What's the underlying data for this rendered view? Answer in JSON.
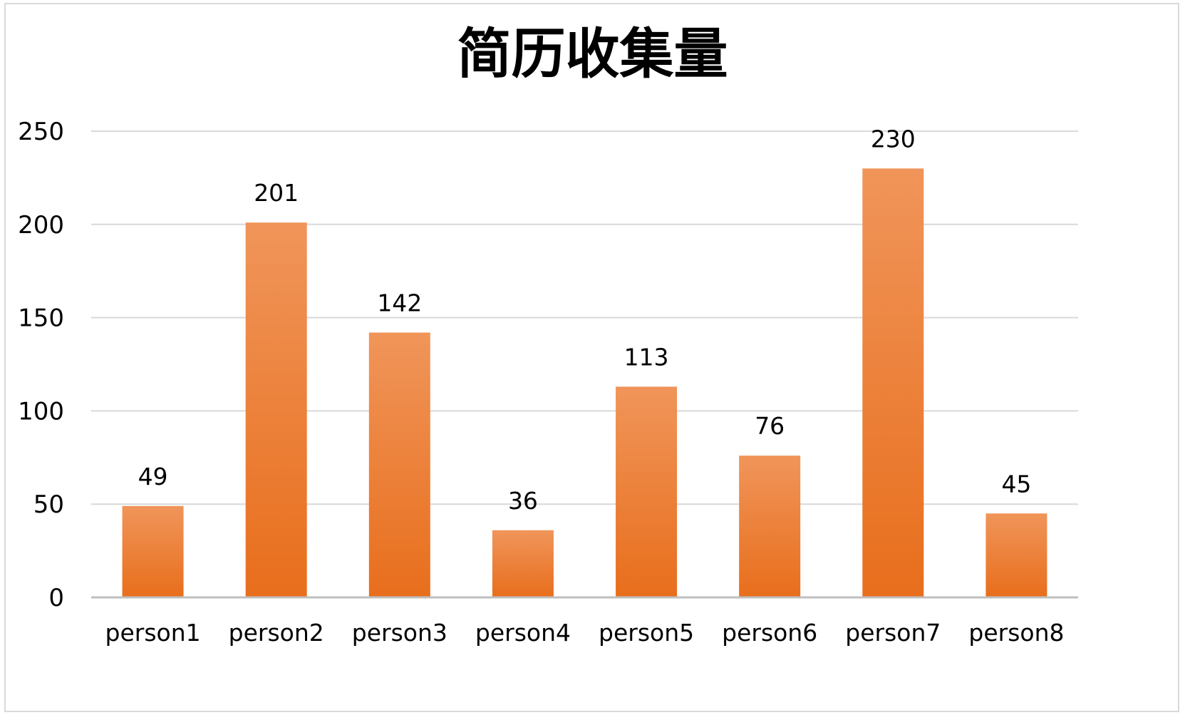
{
  "chart_data": {
    "type": "bar",
    "title": "简历收集量",
    "xlabel": "",
    "ylabel": "",
    "categories": [
      "person1",
      "person2",
      "person3",
      "person4",
      "person5",
      "person6",
      "person7",
      "person8"
    ],
    "values": [
      49,
      201,
      142,
      36,
      113,
      76,
      230,
      45
    ],
    "data_labels": [
      "49",
      "201",
      "142",
      "36",
      "113",
      "76",
      "230",
      "45"
    ],
    "ylim": [
      0,
      250
    ],
    "yticks": [
      0,
      50,
      100,
      150,
      200,
      250
    ],
    "ytick_labels": [
      "0",
      "50",
      "100",
      "150",
      "200",
      "250"
    ],
    "grid": true,
    "legend": "none",
    "colors": {
      "bar_top": "#f0955a",
      "bar_bottom": "#e86e1c",
      "gridline": "#d9d9d9",
      "axis": "#bfbfbf",
      "text": "#000000"
    }
  }
}
